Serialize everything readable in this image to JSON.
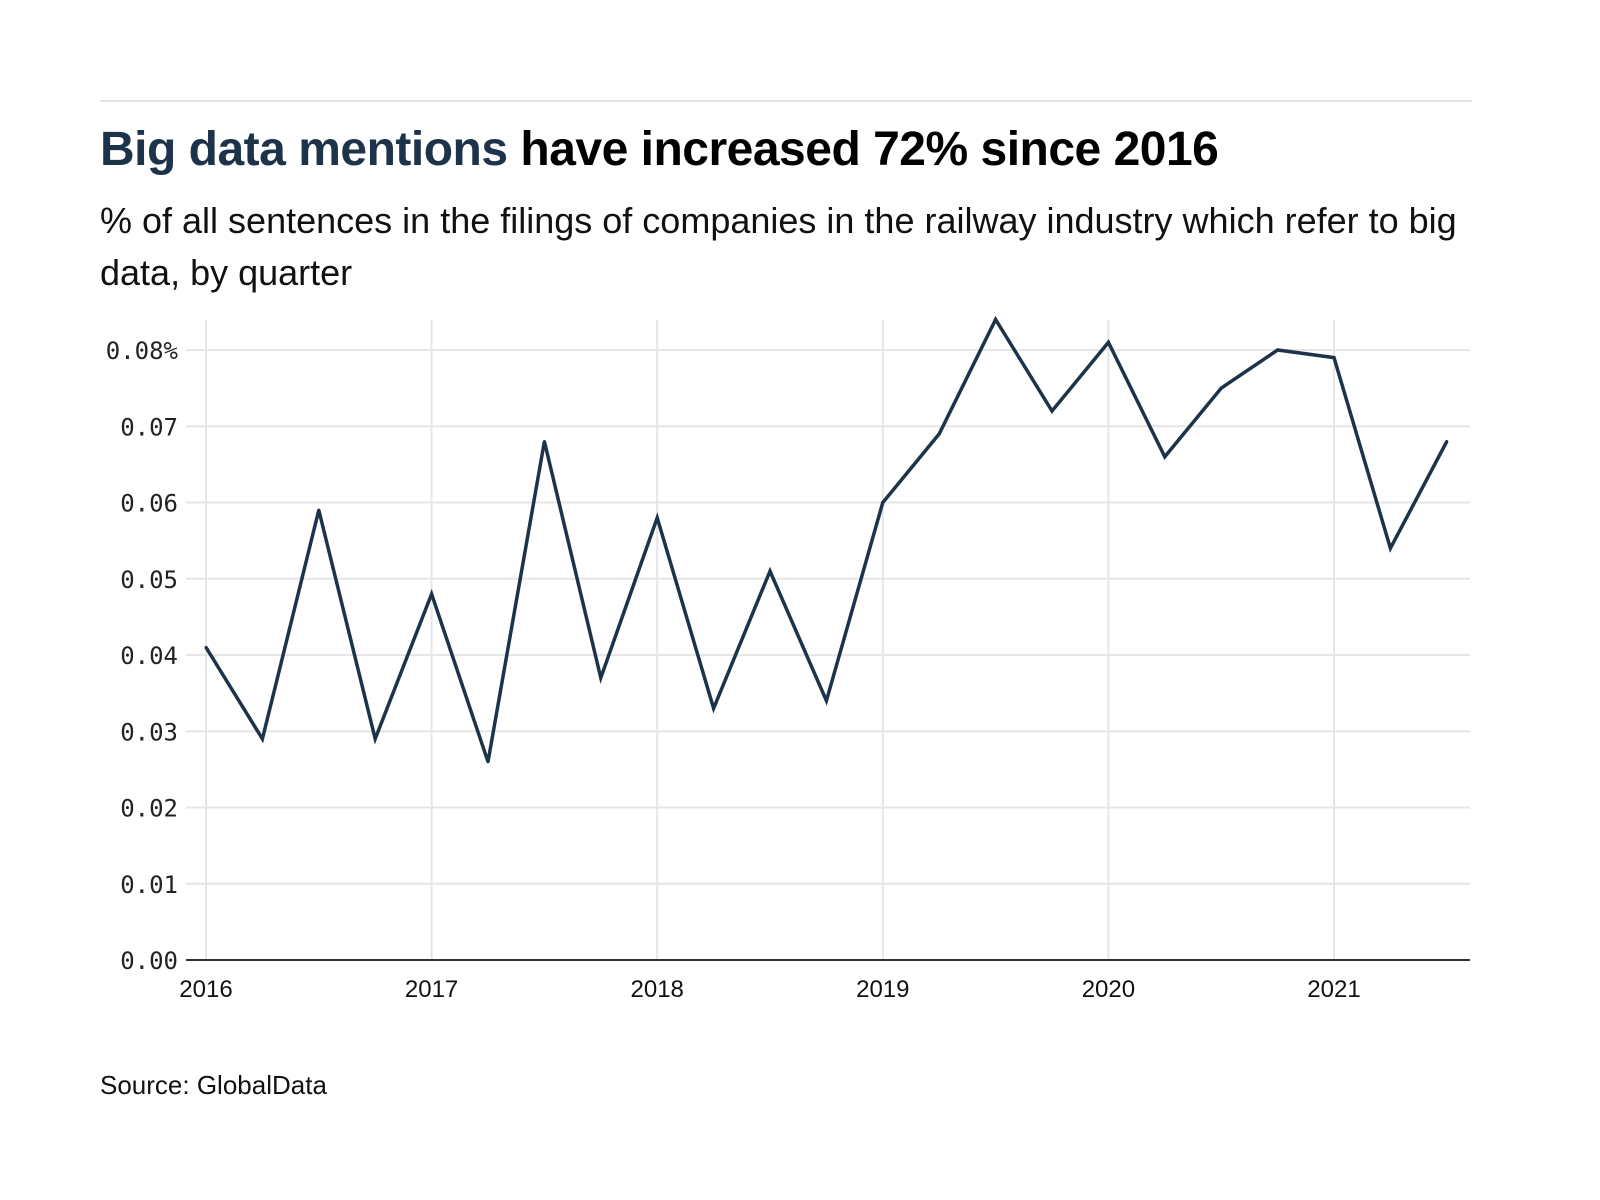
{
  "header": {
    "title_highlight": "Big data mentions",
    "title_rest": " have increased 72% since 2016",
    "subtitle": "% of all sentences in the filings of companies in the railway industry which refer to big data, by quarter"
  },
  "footer": {
    "source": "Source: GlobalData"
  },
  "colors": {
    "line": "#1d3349",
    "grid": "#e6e6e6",
    "axis": "#333333"
  },
  "chart_data": {
    "type": "line",
    "title": "Big data mentions have increased 72% since 2016",
    "subtitle": "% of all sentences in the filings of companies in the railway industry which refer to big data, by quarter",
    "xlabel": "",
    "ylabel": "",
    "x": [
      "2016Q1",
      "2016Q2",
      "2016Q3",
      "2016Q4",
      "2017Q1",
      "2017Q2",
      "2017Q3",
      "2017Q4",
      "2018Q1",
      "2018Q2",
      "2018Q3",
      "2018Q4",
      "2019Q1",
      "2019Q2",
      "2019Q3",
      "2019Q4",
      "2020Q1",
      "2020Q2",
      "2020Q3",
      "2020Q4",
      "2021Q1",
      "2021Q2",
      "2021Q3"
    ],
    "x_numeric": [
      2016.0,
      2016.25,
      2016.5,
      2016.75,
      2017.0,
      2017.25,
      2017.5,
      2017.75,
      2018.0,
      2018.25,
      2018.5,
      2018.75,
      2019.0,
      2019.25,
      2019.5,
      2019.75,
      2020.0,
      2020.25,
      2020.5,
      2020.75,
      2021.0,
      2021.25,
      2021.5
    ],
    "series": [
      {
        "name": "Big data mentions",
        "values": [
          0.041,
          0.029,
          0.059,
          0.029,
          0.048,
          0.026,
          0.068,
          0.037,
          0.058,
          0.033,
          0.051,
          0.034,
          0.06,
          0.069,
          0.084,
          0.072,
          0.081,
          0.066,
          0.075,
          0.08,
          0.079,
          0.054,
          0.068
        ]
      }
    ],
    "xlim": [
      2016.0,
      2021.6
    ],
    "ylim": [
      0,
      0.084
    ],
    "x_ticks": [
      2016,
      2017,
      2018,
      2019,
      2020,
      2021
    ],
    "x_tick_labels": [
      "2016",
      "2017",
      "2018",
      "2019",
      "2020",
      "2021"
    ],
    "y_ticks": [
      0,
      0.01,
      0.02,
      0.03,
      0.04,
      0.05,
      0.06,
      0.07,
      0.08
    ],
    "y_tick_labels": [
      "0.00",
      "0.01",
      "0.02",
      "0.03",
      "0.04",
      "0.05",
      "0.06",
      "0.07",
      "0.08%"
    ],
    "grid": true,
    "legend": "none"
  }
}
